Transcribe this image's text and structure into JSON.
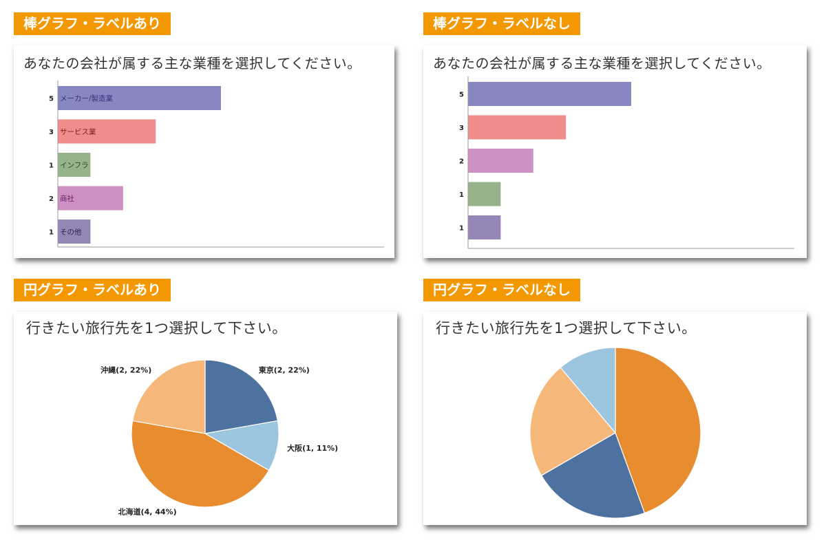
{
  "panels": {
    "bar_labeled": {
      "section_label": "棒グラフ・ラベルあり",
      "question": "あなたの会社が属する主な業種を選択してください。"
    },
    "bar_unlabeled": {
      "section_label": "棒グラフ・ラベルなし",
      "question": "あなたの会社が属する主な業種を選択してください。"
    },
    "pie_labeled": {
      "section_label": "円グラフ・ラベルあり",
      "question": "行きたい旅行先を1つ選択して下さい。"
    },
    "pie_unlabeled": {
      "section_label": "円グラフ・ラベルなし",
      "question": "行きたい旅行先を1つ選択して下さい。"
    }
  },
  "chart_data": [
    {
      "type": "bar",
      "orientation": "horizontal",
      "categories": [
        "メーカー/製造業",
        "サービス業",
        "インフラ",
        "商社",
        "その他"
      ],
      "values": [
        5,
        3,
        1,
        2,
        1
      ],
      "colors": [
        "#8787c2",
        "#f08c8a",
        "#96b38a",
        "#cc90c2",
        "#9487b5"
      ],
      "label_colors": [
        "#33337a",
        "#7a1f1f",
        "#2e4a23",
        "#6b1f66",
        "#2b2450"
      ],
      "xlim": [
        0,
        10
      ],
      "grid": false
    },
    {
      "type": "bar",
      "orientation": "horizontal",
      "values": [
        5,
        3,
        2,
        1,
        1
      ],
      "colors": [
        "#8787c2",
        "#f08c8a",
        "#cc90c2",
        "#96b38a",
        "#9487b5"
      ],
      "xlim": [
        0,
        10
      ],
      "grid": false
    },
    {
      "type": "pie",
      "categories": [
        "東京",
        "大阪",
        "北海道",
        "沖縄"
      ],
      "values": [
        2,
        1,
        4,
        2
      ],
      "labels": [
        "東京(2, 22%)",
        "大阪(1, 11%)",
        "北海道(4, 44%)",
        "沖縄(2, 22%)"
      ],
      "colors": [
        "#4d72a0",
        "#9cc5e0",
        "#e88c30",
        "#f5b87a"
      ]
    },
    {
      "type": "pie",
      "values": [
        4,
        2,
        2,
        1
      ],
      "colors": [
        "#e88c30",
        "#4d72a0",
        "#f5b87a",
        "#9cc5e0"
      ]
    }
  ]
}
